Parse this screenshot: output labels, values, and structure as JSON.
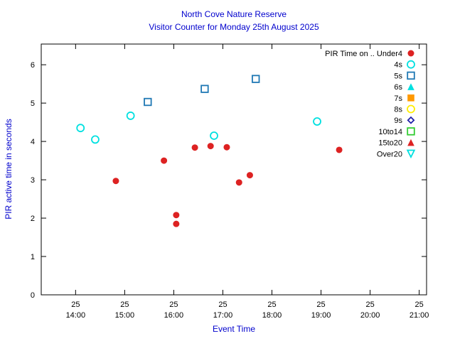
{
  "chart_data": {
    "type": "scatter",
    "title": "North Cove Nature Reserve",
    "subtitle": "Visitor Counter for Monday 25th August 2025",
    "xlabel": "Event Time",
    "ylabel": "PIR active time in seconds",
    "xlim": [
      13.3,
      21.15
    ],
    "ylim": [
      0,
      6.54
    ],
    "y_ticks": [
      0,
      1,
      2,
      3,
      4,
      5,
      6
    ],
    "x_ticks": [
      {
        "value": 14,
        "day": "25",
        "time": "14:00"
      },
      {
        "value": 15,
        "day": "25",
        "time": "15:00"
      },
      {
        "value": 16,
        "day": "25",
        "time": "16:00"
      },
      {
        "value": 17,
        "day": "25",
        "time": "17:00"
      },
      {
        "value": 18,
        "day": "25",
        "time": "18:00"
      },
      {
        "value": 19,
        "day": "25",
        "time": "19:00"
      },
      {
        "value": 20,
        "day": "25",
        "time": "20:00"
      },
      {
        "value": 21,
        "day": "25",
        "time": "21:00"
      }
    ],
    "grid": false,
    "legend_position": "top-right-inside",
    "legend_title": "PIR Time on ..",
    "colors": {
      "title": "#0000cd",
      "axis_label": "#0000cd",
      "tick_label": "#000000",
      "frame": "#000000"
    },
    "series": [
      {
        "name": "Under4",
        "legend_label": "PIR Time on .. Under4",
        "marker": "circle",
        "filled": true,
        "color": "#dd2222",
        "points": [
          [
            14.82,
            2.97
          ],
          [
            15.8,
            3.5
          ],
          [
            16.05,
            2.08
          ],
          [
            16.05,
            1.85
          ],
          [
            16.43,
            3.84
          ],
          [
            16.75,
            3.88
          ],
          [
            17.08,
            3.85
          ],
          [
            17.33,
            2.93
          ],
          [
            17.55,
            3.12
          ],
          [
            19.37,
            3.78
          ]
        ]
      },
      {
        "name": "4s",
        "legend_label": "4s",
        "marker": "circle",
        "filled": false,
        "color": "#00e0e0",
        "points": [
          [
            14.1,
            4.35
          ],
          [
            14.4,
            4.05
          ],
          [
            15.12,
            4.67
          ],
          [
            16.82,
            4.15
          ],
          [
            18.92,
            4.52
          ]
        ]
      },
      {
        "name": "5s",
        "legend_label": "5s",
        "marker": "square",
        "filled": false,
        "color": "#1f78b4",
        "points": [
          [
            15.47,
            5.03
          ],
          [
            16.63,
            5.37
          ],
          [
            17.67,
            5.63
          ]
        ]
      },
      {
        "name": "6s",
        "legend_label": "6s",
        "marker": "triangle-up",
        "filled": true,
        "color": "#00e0e0",
        "points": []
      },
      {
        "name": "7s",
        "legend_label": "7s",
        "marker": "square",
        "filled": true,
        "color": "#ff9900",
        "points": []
      },
      {
        "name": "8s",
        "legend_label": "8s",
        "marker": "circle",
        "filled": false,
        "color": "#ffee00",
        "points": []
      },
      {
        "name": "9s",
        "legend_label": "9s",
        "marker": "diamond",
        "filled": false,
        "color": "#2222aa",
        "points": []
      },
      {
        "name": "10to14",
        "legend_label": "10to14",
        "marker": "square",
        "filled": false,
        "color": "#33cc33",
        "points": []
      },
      {
        "name": "15to20",
        "legend_label": "15to20",
        "marker": "triangle-up",
        "filled": true,
        "color": "#dd2222",
        "points": []
      },
      {
        "name": "Over20",
        "legend_label": "Over20",
        "marker": "triangle-down",
        "filled": false,
        "color": "#00e0e0",
        "points": []
      }
    ]
  }
}
